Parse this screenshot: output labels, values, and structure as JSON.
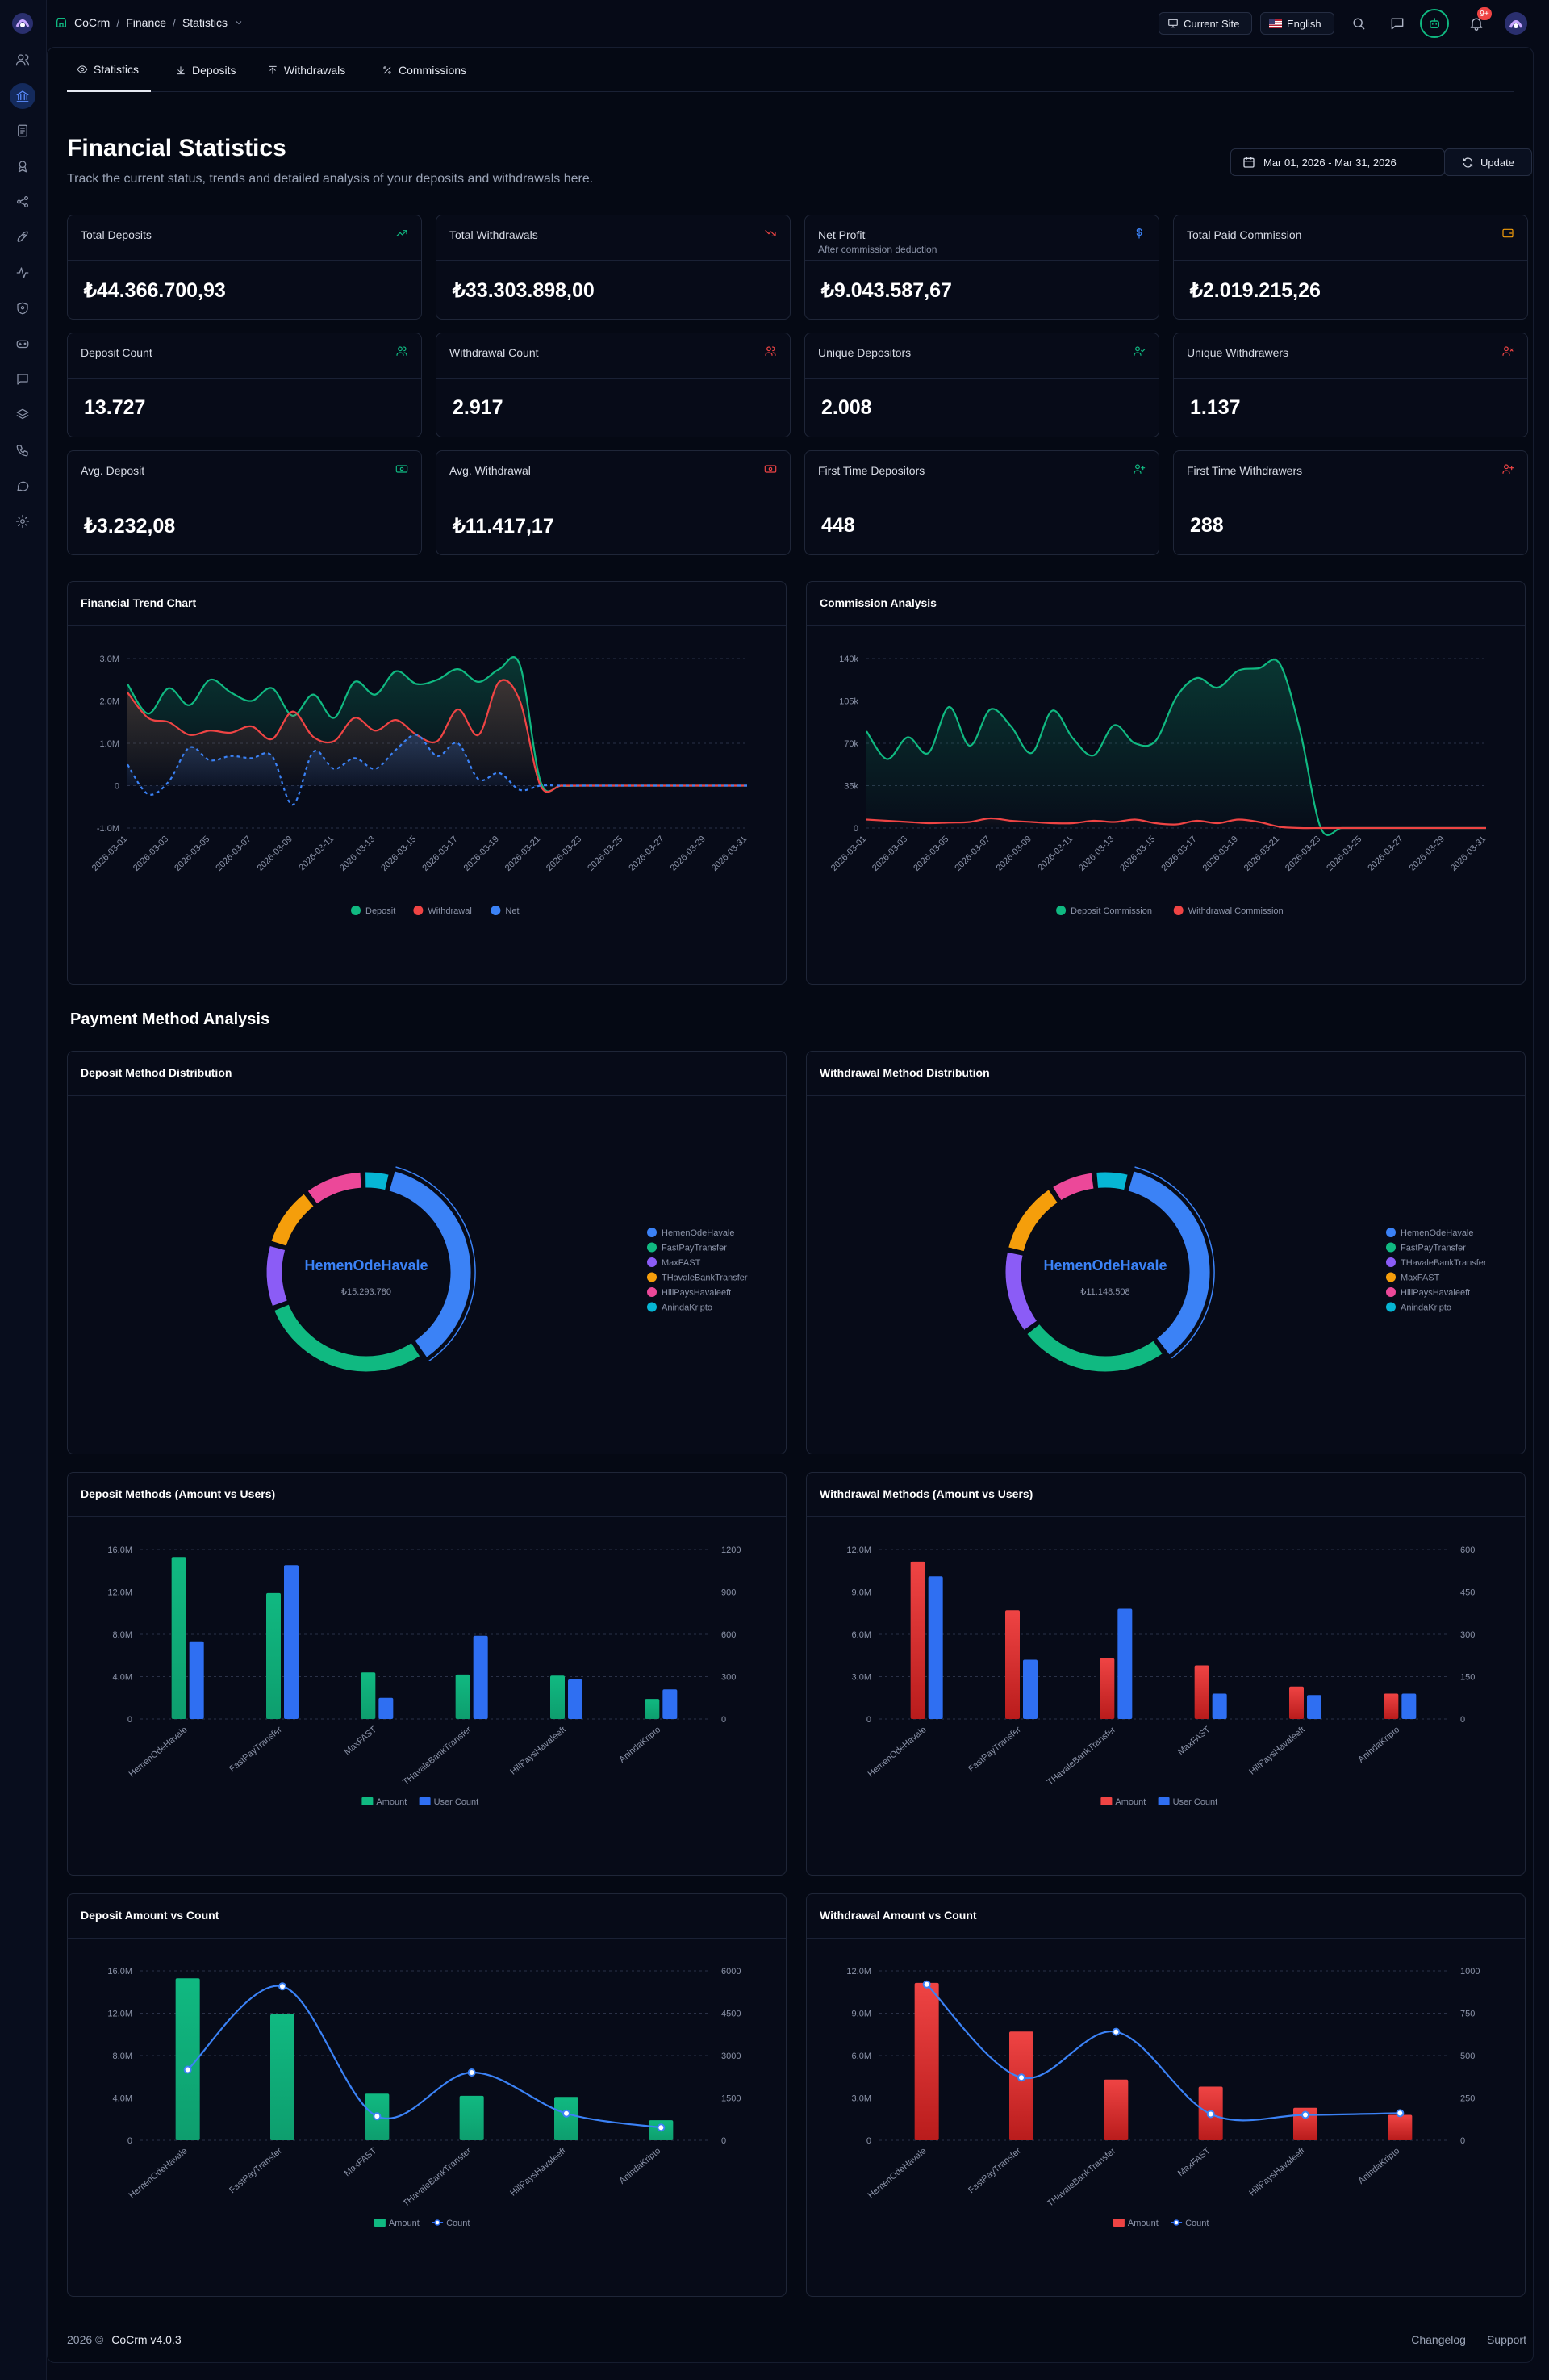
{
  "app": {
    "brand": "CoCrm"
  },
  "breadcrumb": {
    "home": "CoCrm",
    "section": "Finance",
    "page": "Statistics"
  },
  "topbar": {
    "current_site": "Current Site",
    "language": "English",
    "notif_badge": "9+"
  },
  "tabs": [
    "Statistics",
    "Deposits",
    "Withdrawals",
    "Commissions"
  ],
  "page": {
    "title": "Financial Statistics",
    "subtitle": "Track the current status, trends and detailed analysis of your deposits and withdrawals here.",
    "date_range": "Mar 01, 2026 - Mar 31, 2026",
    "update_label": "Update"
  },
  "cards": [
    {
      "title": "Total Deposits",
      "value": "₺44.366.700,93",
      "icon": "trend-up-icon",
      "color": "#10b981"
    },
    {
      "title": "Total Withdrawals",
      "value": "₺33.303.898,00",
      "icon": "trend-down-icon",
      "color": "#ef4444"
    },
    {
      "title": "Net Profit",
      "subtitle": "After commission deduction",
      "value": "₺9.043.587,67",
      "icon": "dollar-icon",
      "color": "#3b82f6"
    },
    {
      "title": "Total Paid Commission",
      "value": "₺2.019.215,26",
      "icon": "wallet-icon",
      "color": "#f59e0b"
    },
    {
      "title": "Deposit Count",
      "value": "13.727",
      "icon": "users-icon",
      "color": "#10b981"
    },
    {
      "title": "Withdrawal Count",
      "value": "2.917",
      "icon": "users-icon",
      "color": "#ef4444"
    },
    {
      "title": "Unique Depositors",
      "value": "2.008",
      "icon": "user-check-icon",
      "color": "#10b981"
    },
    {
      "title": "Unique Withdrawers",
      "value": "1.137",
      "icon": "user-x-icon",
      "color": "#ef4444"
    },
    {
      "title": "Avg. Deposit",
      "value": "₺3.232,08",
      "icon": "banknote-icon",
      "color": "#10b981"
    },
    {
      "title": "Avg. Withdrawal",
      "value": "₺11.417,17",
      "icon": "banknote-icon",
      "color": "#ef4444"
    },
    {
      "title": "First Time Depositors",
      "value": "448",
      "icon": "user-plus-icon",
      "color": "#10b981"
    },
    {
      "title": "First Time Withdrawers",
      "value": "288",
      "icon": "user-plus-icon",
      "color": "#ef4444"
    }
  ],
  "colors": {
    "deposit": "#10b981",
    "withdrawal": "#ef4444",
    "net": "#3b82f6",
    "count": "#2f6ff2"
  },
  "section_title": "Payment Method Analysis",
  "chart_titles": {
    "trend": "Financial Trend Chart",
    "commission": "Commission Analysis",
    "deposit_dist": "Deposit Method Distribution",
    "withdrawal_dist": "Withdrawal Method Distribution",
    "deposit_users": "Deposit Methods (Amount vs Users)",
    "withdrawal_users": "Withdrawal Methods (Amount vs Users)",
    "deposit_count": "Deposit Amount vs Count",
    "withdrawal_count": "Withdrawal Amount vs Count"
  },
  "footer": {
    "copyright": "2026 ©",
    "version": "CoCrm v4.0.3",
    "changelog": "Changelog",
    "support": "Support"
  },
  "chart_data": [
    {
      "id": "trend",
      "type": "area",
      "x": [
        "2026-03-01",
        "2026-03-02",
        "2026-03-03",
        "2026-03-04",
        "2026-03-05",
        "2026-03-06",
        "2026-03-07",
        "2026-03-08",
        "2026-03-09",
        "2026-03-10",
        "2026-03-11",
        "2026-03-12",
        "2026-03-13",
        "2026-03-14",
        "2026-03-15",
        "2026-03-16",
        "2026-03-17",
        "2026-03-18",
        "2026-03-19",
        "2026-03-20",
        "2026-03-21",
        "2026-03-22",
        "2026-03-23",
        "2026-03-24",
        "2026-03-25",
        "2026-03-26",
        "2026-03-27",
        "2026-03-28",
        "2026-03-29",
        "2026-03-30",
        "2026-03-31"
      ],
      "x_ticks": [
        "2026-03-01",
        "2026-03-03",
        "2026-03-05",
        "2026-03-07",
        "2026-03-09",
        "2026-03-11",
        "2026-03-13",
        "2026-03-15",
        "2026-03-17",
        "2026-03-19",
        "2026-03-21",
        "2026-03-23",
        "2026-03-25",
        "2026-03-27",
        "2026-03-29",
        "2026-03-31"
      ],
      "y_ticks": [
        "3.0M",
        "2.0M",
        "1.0M",
        "0",
        "-1.0M"
      ],
      "ylim": [
        -1000000,
        3000000
      ],
      "series": [
        {
          "name": "Deposit",
          "values": [
            2400000,
            1700000,
            2300000,
            1900000,
            2500000,
            2200000,
            2000000,
            2300000,
            1650000,
            2150000,
            1600000,
            2450000,
            2150000,
            2700000,
            2400000,
            2500000,
            2750000,
            2450000,
            2750000,
            2850000,
            100000,
            0,
            0,
            0,
            0,
            0,
            0,
            0,
            0,
            0,
            0
          ]
        },
        {
          "name": "Withdrawal",
          "values": [
            2200000,
            1600000,
            1500000,
            1200000,
            1300000,
            1250000,
            1400000,
            1100000,
            1750000,
            1150000,
            1050000,
            1600000,
            1300000,
            1550000,
            1200000,
            1050000,
            1800000,
            1200000,
            2450000,
            2000000,
            0,
            0,
            0,
            0,
            0,
            0,
            0,
            0,
            0,
            0,
            0
          ]
        },
        {
          "name": "Net",
          "values": [
            500000,
            -200000,
            100000,
            900000,
            600000,
            700000,
            650000,
            700000,
            -450000,
            800000,
            400000,
            650000,
            400000,
            850000,
            1200000,
            700000,
            1000000,
            150000,
            300000,
            -100000,
            0,
            0,
            0,
            0,
            0,
            0,
            0,
            0,
            0,
            0,
            0
          ]
        }
      ]
    },
    {
      "id": "commission",
      "type": "area",
      "x": [
        "2026-03-01",
        "2026-03-02",
        "2026-03-03",
        "2026-03-04",
        "2026-03-05",
        "2026-03-06",
        "2026-03-07",
        "2026-03-08",
        "2026-03-09",
        "2026-03-10",
        "2026-03-11",
        "2026-03-12",
        "2026-03-13",
        "2026-03-14",
        "2026-03-15",
        "2026-03-16",
        "2026-03-17",
        "2026-03-18",
        "2026-03-19",
        "2026-03-20",
        "2026-03-21",
        "2026-03-22",
        "2026-03-23",
        "2026-03-24",
        "2026-03-25",
        "2026-03-26",
        "2026-03-27",
        "2026-03-28",
        "2026-03-29",
        "2026-03-30",
        "2026-03-31"
      ],
      "x_ticks": [
        "2026-03-01",
        "2026-03-03",
        "2026-03-05",
        "2026-03-07",
        "2026-03-09",
        "2026-03-11",
        "2026-03-13",
        "2026-03-15",
        "2026-03-17",
        "2026-03-19",
        "2026-03-21",
        "2026-03-23",
        "2026-03-25",
        "2026-03-27",
        "2026-03-29",
        "2026-03-31"
      ],
      "y_ticks": [
        "140k",
        "105k",
        "70k",
        "35k",
        "0"
      ],
      "ylim": [
        0,
        140000
      ],
      "series": [
        {
          "name": "Deposit Commission",
          "values": [
            80000,
            57000,
            75000,
            62000,
            100000,
            68000,
            98000,
            84000,
            62000,
            97000,
            74000,
            60000,
            85000,
            70000,
            72000,
            108000,
            124000,
            116000,
            130000,
            132000,
            136000,
            80000,
            0,
            0,
            0,
            0,
            0,
            0,
            0,
            0,
            0
          ]
        },
        {
          "name": "Withdrawal Commission",
          "values": [
            7000,
            6000,
            5000,
            4000,
            4500,
            5000,
            8000,
            6000,
            5000,
            4000,
            4000,
            6000,
            5000,
            7000,
            4000,
            3000,
            6000,
            4000,
            7000,
            5000,
            1000,
            0,
            0,
            0,
            0,
            0,
            0,
            0,
            0,
            0,
            0
          ]
        }
      ]
    },
    {
      "id": "deposit_dist",
      "type": "pie",
      "center_label": "HemenOdeHavale",
      "center_value": "₺15.293.780",
      "categories": [
        "HemenOdeHavale",
        "FastPayTransfer",
        "MaxFAST",
        "THavaleBankTransfer",
        "HillPaysHavaleeft",
        "AnindaKripto"
      ],
      "values": [
        15293780,
        11900000,
        4400000,
        4200000,
        4100000,
        1900000
      ],
      "colors": [
        "#3b82f6",
        "#10b981",
        "#8b5cf6",
        "#f59e0b",
        "#ec4899",
        "#06b6d4"
      ]
    },
    {
      "id": "withdrawal_dist",
      "type": "pie",
      "center_label": "HemenOdeHavale",
      "center_value": "₺11.148.508",
      "categories": [
        "HemenOdeHavale",
        "FastPayTransfer",
        "THavaleBankTransfer",
        "MaxFAST",
        "HillPaysHavaleeft",
        "AnindaKripto"
      ],
      "values": [
        11148508,
        7700000,
        4300000,
        3800000,
        2300000,
        1800000
      ],
      "colors": [
        "#3b82f6",
        "#10b981",
        "#8b5cf6",
        "#f59e0b",
        "#ec4899",
        "#06b6d4"
      ]
    },
    {
      "id": "deposit_users",
      "type": "bar",
      "categories": [
        "HemenOdeHavale",
        "FastPayTransfer",
        "MaxFAST",
        "THavaleBankTransfer",
        "HillPaysHavaleeft",
        "AnindaKripto"
      ],
      "y_ticks": [
        "16.0M",
        "12.0M",
        "8.0M",
        "4.0M",
        "0"
      ],
      "ylim": [
        0,
        16000000
      ],
      "y2_ticks": [
        "1200",
        "900",
        "600",
        "300",
        "0"
      ],
      "y2lim": [
        0,
        1200
      ],
      "series": [
        {
          "name": "Amount",
          "values": [
            15293780,
            11900000,
            4400000,
            4200000,
            4100000,
            1900000
          ]
        },
        {
          "name": "User Count",
          "values": [
            550,
            1090,
            150,
            590,
            280,
            210
          ]
        }
      ]
    },
    {
      "id": "withdrawal_users",
      "type": "bar",
      "categories": [
        "HemenOdeHavale",
        "FastPayTransfer",
        "THavaleBankTransfer",
        "MaxFAST",
        "HillPaysHavaleeft",
        "AnindaKripto"
      ],
      "y_ticks": [
        "12.0M",
        "9.0M",
        "6.0M",
        "3.0M",
        "0"
      ],
      "ylim": [
        0,
        12000000
      ],
      "y2_ticks": [
        "600",
        "450",
        "300",
        "150",
        "0"
      ],
      "y2lim": [
        0,
        600
      ],
      "series": [
        {
          "name": "Amount",
          "values": [
            11148508,
            7700000,
            4300000,
            3800000,
            2300000,
            1800000
          ]
        },
        {
          "name": "User Count",
          "values": [
            505,
            210,
            390,
            90,
            85,
            90
          ]
        }
      ]
    },
    {
      "id": "deposit_count",
      "type": "bar",
      "categories": [
        "HemenOdeHavale",
        "FastPayTransfer",
        "MaxFAST",
        "THavaleBankTransfer",
        "HillPaysHavaleeft",
        "AnindaKripto"
      ],
      "y_ticks": [
        "16.0M",
        "12.0M",
        "8.0M",
        "4.0M",
        "0"
      ],
      "ylim": [
        0,
        16000000
      ],
      "y2_ticks": [
        "6000",
        "4500",
        "3000",
        "1500",
        "0"
      ],
      "y2lim": [
        0,
        6000
      ],
      "series": [
        {
          "name": "Amount",
          "values": [
            15293780,
            11900000,
            4400000,
            4200000,
            4100000,
            1900000
          ]
        },
        {
          "name": "Count",
          "values": [
            2500,
            5450,
            850,
            2400,
            950,
            450
          ]
        }
      ]
    },
    {
      "id": "withdrawal_count",
      "type": "bar",
      "categories": [
        "HemenOdeHavale",
        "FastPayTransfer",
        "THavaleBankTransfer",
        "MaxFAST",
        "HillPaysHavaleeft",
        "AnindaKripto"
      ],
      "y_ticks": [
        "12.0M",
        "9.0M",
        "6.0M",
        "3.0M",
        "0"
      ],
      "ylim": [
        0,
        12000000
      ],
      "y2_ticks": [
        "1000",
        "750",
        "500",
        "250",
        "0"
      ],
      "y2lim": [
        0,
        1000
      ],
      "series": [
        {
          "name": "Amount",
          "values": [
            11148508,
            7700000,
            4300000,
            3800000,
            2300000,
            1800000
          ]
        },
        {
          "name": "Count",
          "values": [
            920,
            370,
            640,
            155,
            150,
            160
          ]
        }
      ]
    }
  ]
}
